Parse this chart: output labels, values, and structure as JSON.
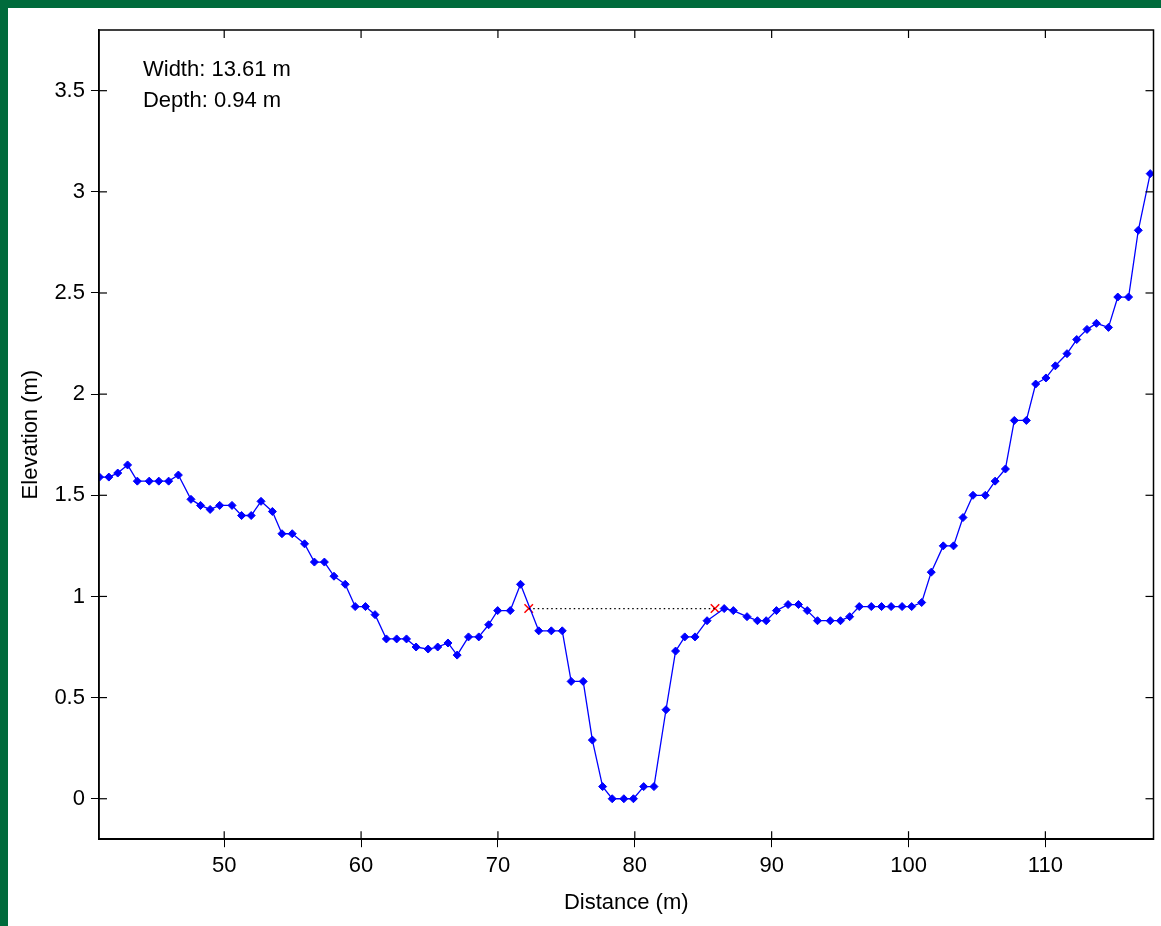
{
  "chart_data": {
    "type": "line",
    "xlabel": "Distance (m)",
    "ylabel": "Elevation (m)",
    "xlim": [
      40.85,
      117.9
    ],
    "ylim": [
      -0.2,
      3.8
    ],
    "xticks": [
      50,
      60,
      70,
      80,
      90,
      100,
      110
    ],
    "yticks": [
      0,
      0.5,
      1,
      1.5,
      2,
      2.5,
      3,
      3.5
    ],
    "grid": false,
    "annotations": [
      "Width: 13.61 m",
      "Depth: 0.94 m"
    ],
    "series": [
      {
        "color": "#0000ff",
        "marker": "diamond",
        "line_style": "solid",
        "x": [
          40.89,
          41.57,
          42.22,
          42.94,
          43.65,
          44.52,
          45.22,
          45.94,
          46.65,
          47.57,
          48.27,
          48.97,
          49.67,
          50.57,
          51.27,
          51.97,
          52.69,
          53.52,
          54.22,
          54.97,
          55.87,
          56.59,
          57.32,
          58.02,
          58.84,
          59.57,
          60.32,
          61.02,
          61.85,
          62.6,
          63.32,
          64.02,
          64.9,
          65.6,
          66.35,
          67.02,
          67.85,
          68.6,
          69.32,
          69.98,
          70.9,
          71.65,
          72.98,
          73.9,
          74.7,
          75.35,
          76.23,
          76.9,
          77.65,
          78.35,
          79.2,
          79.9,
          80.65,
          81.4,
          82.28,
          82.98,
          83.65,
          84.4,
          85.28,
          86.53,
          87.2,
          88.2,
          88.96,
          89.6,
          90.35,
          91.2,
          91.96,
          92.6,
          93.35,
          94.28,
          95.03,
          95.7,
          96.4,
          97.28,
          98.03,
          98.73,
          99.53,
          100.23,
          100.96,
          101.66,
          102.54,
          103.29,
          103.98,
          104.71,
          105.61,
          106.33,
          107.08,
          107.73,
          108.61,
          109.29,
          110.04,
          110.73,
          111.58,
          112.29,
          113.04,
          113.73,
          114.61,
          115.29,
          116.08,
          116.79,
          117.66
        ],
        "values": [
          1.59,
          1.59,
          1.61,
          1.65,
          1.57,
          1.57,
          1.57,
          1.57,
          1.6,
          1.48,
          1.45,
          1.43,
          1.45,
          1.45,
          1.4,
          1.4,
          1.47,
          1.42,
          1.31,
          1.31,
          1.26,
          1.17,
          1.17,
          1.1,
          1.06,
          0.95,
          0.95,
          0.91,
          0.79,
          0.79,
          0.79,
          0.75,
          0.74,
          0.75,
          0.77,
          0.71,
          0.8,
          0.8,
          0.86,
          0.93,
          0.93,
          1.06,
          0.83,
          0.83,
          0.83,
          0.58,
          0.58,
          0.29,
          0.06,
          0,
          0,
          0,
          0.06,
          0.06,
          0.44,
          0.73,
          0.8,
          0.8,
          0.88,
          0.94,
          0.93,
          0.9,
          0.88,
          0.88,
          0.93,
          0.96,
          0.96,
          0.93,
          0.88,
          0.88,
          0.88,
          0.9,
          0.95,
          0.95,
          0.95,
          0.95,
          0.95,
          0.95,
          0.97,
          1.12,
          1.25,
          1.25,
          1.39,
          1.5,
          1.5,
          1.57,
          1.63,
          1.87,
          1.87,
          2.05,
          2.08,
          2.14,
          2.2,
          2.27,
          2.32,
          2.35,
          2.33,
          2.48,
          2.48,
          2.81,
          3.09
        ]
      },
      {
        "type": "line",
        "color": "#000000",
        "marker": "none",
        "line_style": "dotted",
        "x": [
          72.25,
          85.86
        ],
        "values": [
          0.94,
          0.94
        ]
      },
      {
        "type": "scatter",
        "color": "#ff0000",
        "marker": "cross",
        "x": [
          72.25,
          85.86
        ],
        "values": [
          0.94,
          0.94
        ]
      }
    ]
  }
}
